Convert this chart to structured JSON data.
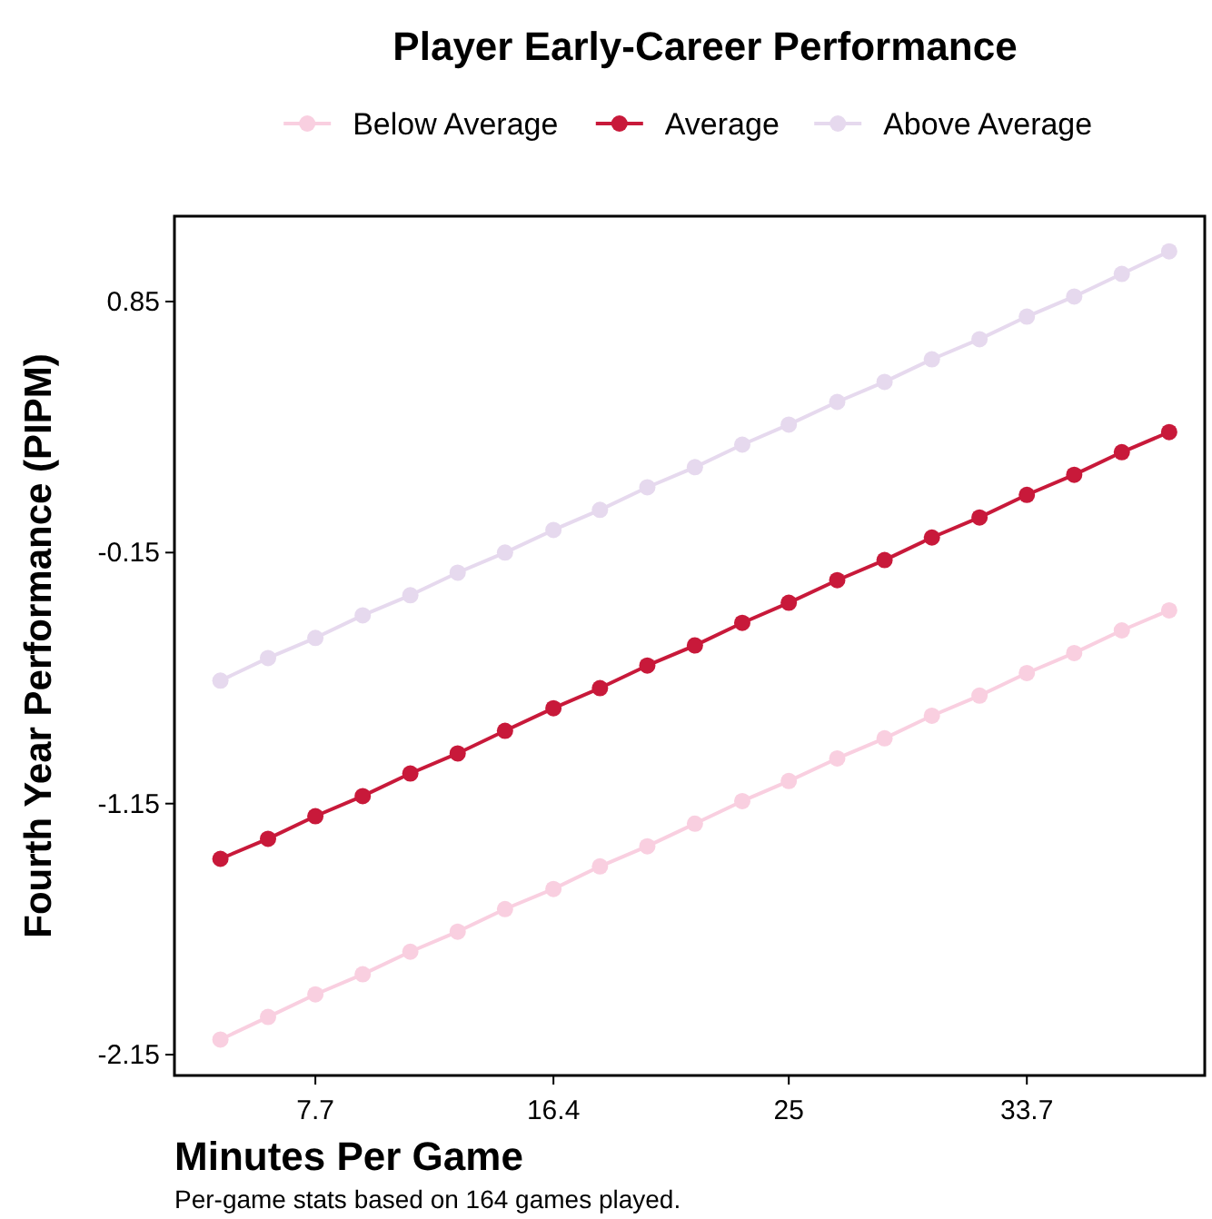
{
  "chart_data": {
    "type": "line",
    "title": "Player Early-Career Performance",
    "xlabel": "Minutes Per Game",
    "ylabel": "Fourth Year Performance (PIPM)",
    "annotations": [
      "Per-game stats based on 164 games played."
    ],
    "x": [
      4.23,
      5.97,
      7.7,
      9.43,
      11.17,
      12.9,
      14.63,
      16.4,
      18.1,
      19.83,
      21.57,
      23.3,
      25,
      26.77,
      28.5,
      30.23,
      31.97,
      33.7,
      35.43,
      37.17,
      38.9
    ],
    "series": [
      {
        "name": "Below Average",
        "color": "#f9cfe0",
        "values": [
          -2.09,
          -2.0,
          -1.91,
          -1.83,
          -1.74,
          -1.66,
          -1.57,
          -1.49,
          -1.4,
          -1.32,
          -1.23,
          -1.14,
          -1.06,
          -0.97,
          -0.89,
          -0.8,
          -0.72,
          -0.63,
          -0.55,
          -0.46,
          -0.38
        ]
      },
      {
        "name": "Average",
        "color": "#c8193a",
        "values": [
          -1.37,
          -1.29,
          -1.2,
          -1.12,
          -1.03,
          -0.95,
          -0.86,
          -0.77,
          -0.69,
          -0.6,
          -0.52,
          -0.43,
          -0.35,
          -0.26,
          -0.18,
          -0.09,
          -0.01,
          0.08,
          0.16,
          0.25,
          0.33
        ]
      },
      {
        "name": "Above Average",
        "color": "#e6d9ee",
        "values": [
          -0.66,
          -0.57,
          -0.49,
          -0.4,
          -0.32,
          -0.23,
          -0.15,
          -0.06,
          0.02,
          0.11,
          0.19,
          0.28,
          0.36,
          0.45,
          0.53,
          0.62,
          0.7,
          0.79,
          0.87,
          0.96,
          1.05
        ]
      }
    ],
    "xlim": [
      2.55,
      40.2
    ],
    "xticks": [
      7.7,
      16.4,
      25,
      33.7
    ],
    "ylim": [
      -2.233,
      1.19
    ],
    "yticks": [
      0.85,
      -0.15,
      -1.15,
      -2.15
    ],
    "grid": false,
    "legend": "top",
    "marker": "circle",
    "line_style": "solid"
  }
}
